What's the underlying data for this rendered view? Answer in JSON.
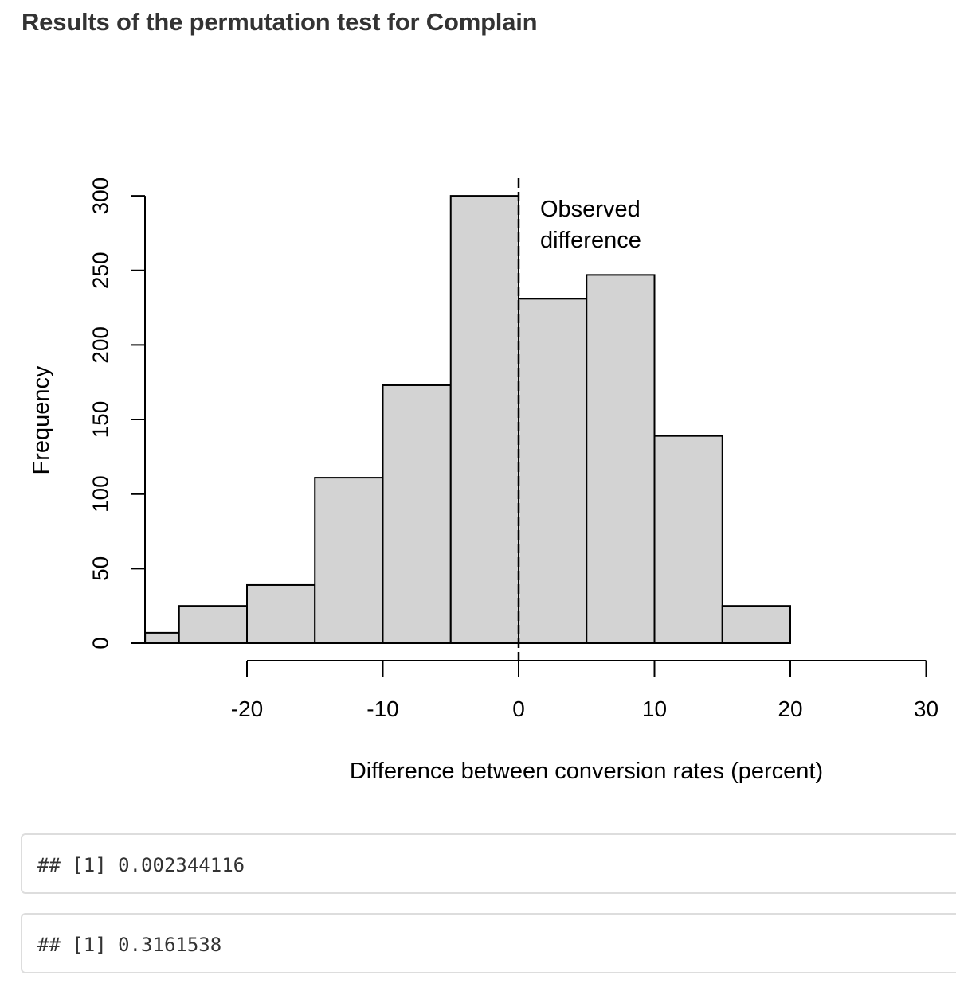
{
  "page": {
    "title": "Results of the permutation test for Complain"
  },
  "chart_data": {
    "type": "bar",
    "chart_kind": "histogram",
    "xlabel": "Difference between conversion rates (percent)",
    "ylabel": "Frequency",
    "x_ticks": [
      -20,
      -10,
      0,
      10,
      20,
      30
    ],
    "y_ticks": [
      0,
      50,
      100,
      150,
      200,
      250,
      300
    ],
    "bins": [
      {
        "from": -27.5,
        "to": -25,
        "count": 7
      },
      {
        "from": -25,
        "to": -20,
        "count": 25
      },
      {
        "from": -20,
        "to": -15,
        "count": 39
      },
      {
        "from": -15,
        "to": -10,
        "count": 111
      },
      {
        "from": -10,
        "to": -5,
        "count": 173
      },
      {
        "from": -5,
        "to": 0,
        "count": 300
      },
      {
        "from": 0,
        "to": 5,
        "count": 231
      },
      {
        "from": 5,
        "to": 10,
        "count": 247
      },
      {
        "from": 10,
        "to": 15,
        "count": 139
      },
      {
        "from": 15,
        "to": 20,
        "count": 25
      }
    ],
    "observed_difference": 0,
    "annotation_lines": [
      "Observed",
      "difference"
    ],
    "bar_fill": "#d3d3d3",
    "line_color": "#000000"
  },
  "outputs": [
    {
      "text": "## [1] 0.002344116"
    },
    {
      "text": "## [1] 0.3161538"
    }
  ]
}
